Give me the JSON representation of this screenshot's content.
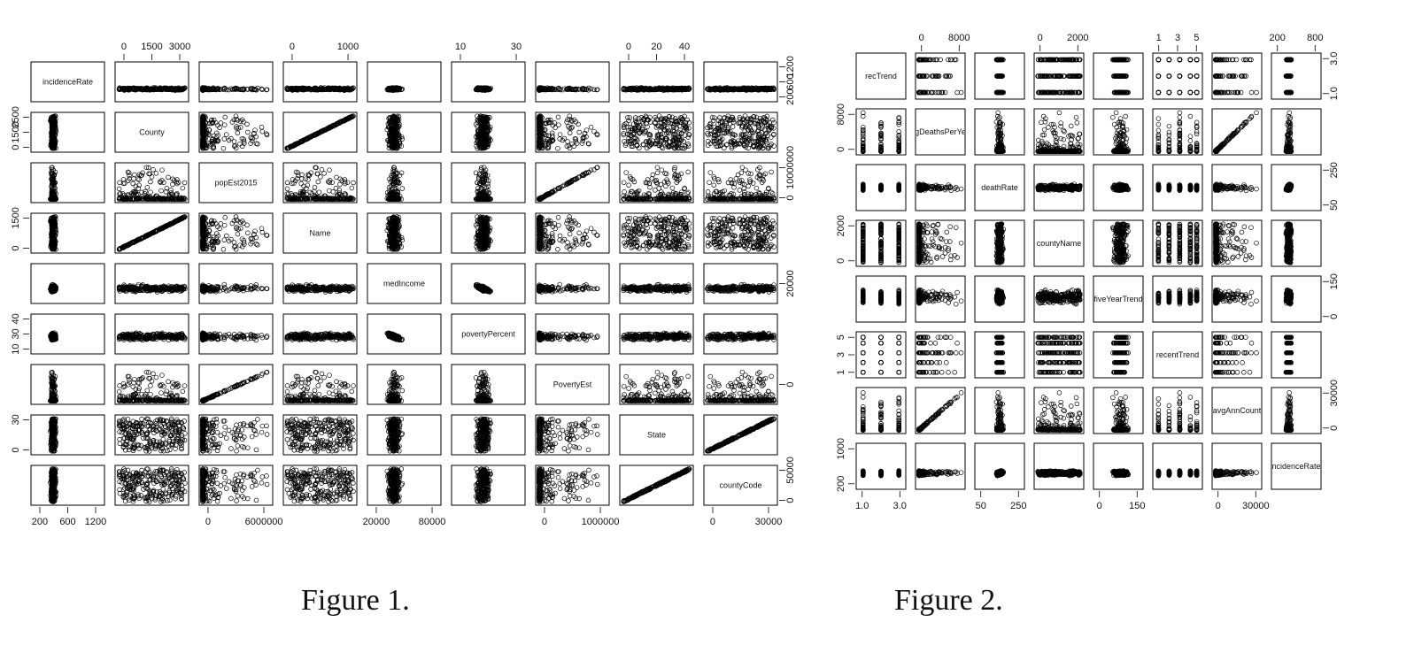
{
  "header_text": "",
  "figures": [
    {
      "caption": "Figure 1.",
      "variables": [
        "incidenceRate",
        "County",
        "popEst2015",
        "Name",
        "medIncome",
        "povertyPercent",
        "PovertyEst",
        "State",
        "countyCode"
      ],
      "top_axis": {
        "1": [
          "0",
          "1500",
          "3000"
        ],
        "3": [
          "0",
          "1000"
        ],
        "5": [
          "10",
          "30"
        ],
        "7": [
          "0",
          "20",
          "40"
        ]
      },
      "bottom_axis": {
        "0": [
          "200",
          "600",
          "1200"
        ],
        "2": [
          "0",
          "6000000"
        ],
        "4": [
          "20000",
          "80000"
        ],
        "6": [
          "0",
          "1000000"
        ],
        "8": [
          "0",
          "30000"
        ]
      },
      "left_axis": {
        "1": [
          "0",
          "1500",
          "2500"
        ],
        "3": [
          "0",
          "1500"
        ],
        "5": [
          "10",
          "30",
          "40"
        ],
        "7": [
          "0",
          "30"
        ]
      },
      "right_axis": {
        "0": [
          "200",
          "600",
          "1200"
        ],
        "2": [
          "0",
          "10000000"
        ],
        "4": [
          "20000"
        ],
        "6": [
          "0"
        ],
        "8": [
          "0",
          "50000"
        ]
      }
    },
    {
      "caption": "Figure 2.",
      "variables": [
        "recTrend",
        "gDeathsPerYe",
        "deathRate",
        "countyName",
        "fiveYearTrend",
        "recentTrend",
        "avgAnnCount",
        "ncidenceRate"
      ],
      "top_axis": {
        "1": [
          "0",
          "8000"
        ],
        "3": [
          "0",
          "2000"
        ],
        "5": [
          "1",
          "3",
          "5"
        ],
        "7": [
          "200",
          "800"
        ]
      },
      "bottom_axis": {
        "0": [
          "1.0",
          "3.0"
        ],
        "2": [
          "50",
          "250"
        ],
        "4": [
          "0",
          "150"
        ],
        "6": [
          "0",
          "30000"
        ]
      },
      "left_axis": {
        "1": [
          "0",
          "8000"
        ],
        "3": [
          "0",
          "2000"
        ],
        "5": [
          "1",
          "3",
          "5"
        ],
        "7": [
          "200",
          "1000"
        ]
      },
      "right_axis": {
        "0": [
          "1.0",
          "3.0"
        ],
        "2": [
          "50",
          "250"
        ],
        "4": [
          "0",
          "150"
        ],
        "6": [
          "0",
          "30000"
        ]
      }
    }
  ],
  "chart_data": [
    {
      "type": "scatter",
      "title": "",
      "variables": [
        "incidenceRate",
        "County",
        "popEst2015",
        "Name",
        "medIncome",
        "povertyPercent",
        "PovertyEst",
        "State",
        "countyCode"
      ],
      "ranges": {
        "incidenceRate": [
          200,
          1200
        ],
        "County": [
          0,
          3000
        ],
        "popEst2015": [
          0,
          10000000
        ],
        "Name": [
          0,
          1500
        ],
        "medIncome": [
          20000,
          110000
        ],
        "povertyPercent": [
          5,
          45
        ],
        "PovertyEst": [
          0,
          1700000
        ],
        "State": [
          0,
          50
        ],
        "countyCode": [
          0,
          55000
        ]
      }
    },
    {
      "type": "scatter",
      "title": "",
      "variables": [
        "recTrend",
        "gDeathsPerYe",
        "deathRate",
        "countyName",
        "fiveYearTrend",
        "recentTrend",
        "avgAnnCount",
        "ncidenceRate"
      ],
      "ranges": {
        "recTrend": [
          1,
          4
        ],
        "gDeathsPerYe": [
          0,
          14000
        ],
        "deathRate": [
          50,
          360
        ],
        "countyName": [
          0,
          3000
        ],
        "fiveYearTrend": [
          0,
          200
        ],
        "recentTrend": [
          1,
          6
        ],
        "avgAnnCount": [
          0,
          38000
        ],
        "ncidenceRate": [
          200,
          1100
        ]
      }
    }
  ]
}
